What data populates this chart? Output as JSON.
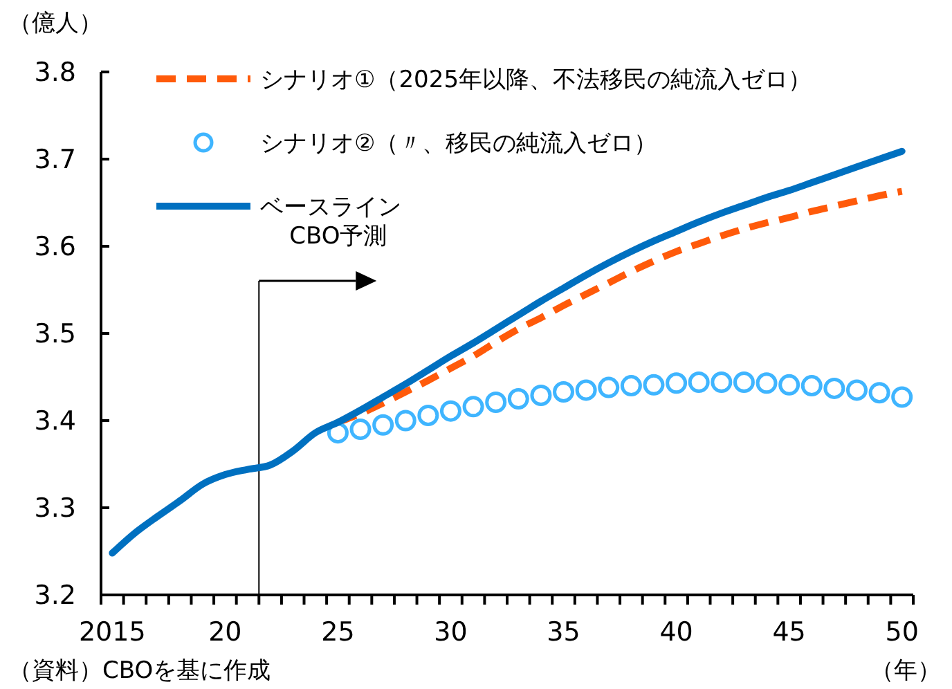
{
  "chart_data": {
    "type": "line",
    "ylabel": "（億人）",
    "xlabel": "（年）",
    "annotations": [
      "（資料）CBOを基に作成"
    ],
    "xlim": [
      2014.5,
      2050.5
    ],
    "xticks": [
      {
        "value": 2015,
        "label": "2015"
      },
      {
        "value": 2020,
        "label": "20"
      },
      {
        "value": 2025,
        "label": "25"
      },
      {
        "value": 2030,
        "label": "30"
      },
      {
        "value": 2035,
        "label": "35"
      },
      {
        "value": 2040,
        "label": "40"
      },
      {
        "value": 2045,
        "label": "45"
      },
      {
        "value": 2050,
        "label": "50"
      }
    ],
    "ylim": [
      3.2,
      3.8
    ],
    "yticks": [
      {
        "value": 3.2,
        "label": "3.2"
      },
      {
        "value": 3.3,
        "label": "3.3"
      },
      {
        "value": 3.4,
        "label": "3.4"
      },
      {
        "value": 3.5,
        "label": "3.5"
      },
      {
        "value": 3.6,
        "label": "3.6"
      },
      {
        "value": 3.7,
        "label": "3.7"
      },
      {
        "value": 3.8,
        "label": "3.8"
      }
    ],
    "grid": false,
    "legend": "top left",
    "ref_lines": [
      {
        "axis": "x",
        "value": 2021.5,
        "label": "CBO予測",
        "color": "#000000"
      }
    ],
    "series": [
      {
        "name": "シナリオ①（2025年以降、不法移民の純流入ゼロ）",
        "color": "#ff5a0a",
        "line_style": "dashed",
        "marker": "none",
        "x": [
          2025,
          2026,
          2027,
          2028,
          2029,
          2030,
          2031,
          2032,
          2033,
          2034,
          2035,
          2036,
          2037,
          2038,
          2039,
          2040,
          2041,
          2042,
          2043,
          2044,
          2045,
          2046,
          2047,
          2048,
          2049,
          2050
        ],
        "values": [
          3.398,
          3.408,
          3.42,
          3.433,
          3.446,
          3.46,
          3.474,
          3.49,
          3.505,
          3.518,
          3.532,
          3.545,
          3.558,
          3.571,
          3.583,
          3.594,
          3.603,
          3.612,
          3.62,
          3.627,
          3.633,
          3.64,
          3.646,
          3.652,
          3.658,
          3.663
        ]
      },
      {
        "name": "シナリオ②（〃、移民の純流入ゼロ）",
        "type": "scatter",
        "color": "#3fb5ff",
        "marker": "circle",
        "x": [
          2025,
          2026,
          2027,
          2028,
          2029,
          2030,
          2031,
          2032,
          2033,
          2034,
          2035,
          2036,
          2037,
          2038,
          2039,
          2040,
          2041,
          2042,
          2043,
          2044,
          2045,
          2046,
          2047,
          2048,
          2049,
          2050
        ],
        "values": [
          3.386,
          3.39,
          3.395,
          3.4,
          3.406,
          3.411,
          3.416,
          3.421,
          3.425,
          3.429,
          3.433,
          3.435,
          3.438,
          3.44,
          3.441,
          3.443,
          3.444,
          3.444,
          3.444,
          3.443,
          3.441,
          3.44,
          3.437,
          3.435,
          3.432,
          3.427
        ]
      },
      {
        "name": "ベースライン",
        "color": "#0070c0",
        "line_style": "solid",
        "marker": "none",
        "x": [
          2015,
          2016,
          2017,
          2018,
          2019,
          2020,
          2021,
          2022,
          2023,
          2024,
          2025,
          2026,
          2027,
          2028,
          2029,
          2030,
          2031,
          2032,
          2033,
          2034,
          2035,
          2036,
          2037,
          2038,
          2039,
          2040,
          2041,
          2042,
          2043,
          2044,
          2045,
          2046,
          2047,
          2048,
          2049,
          2050
        ],
        "values": [
          3.248,
          3.271,
          3.29,
          3.308,
          3.327,
          3.338,
          3.344,
          3.349,
          3.365,
          3.386,
          3.398,
          3.412,
          3.427,
          3.442,
          3.458,
          3.474,
          3.489,
          3.505,
          3.521,
          3.537,
          3.552,
          3.567,
          3.581,
          3.594,
          3.606,
          3.617,
          3.628,
          3.638,
          3.647,
          3.656,
          3.664,
          3.673,
          3.682,
          3.691,
          3.7,
          3.709
        ]
      }
    ]
  }
}
